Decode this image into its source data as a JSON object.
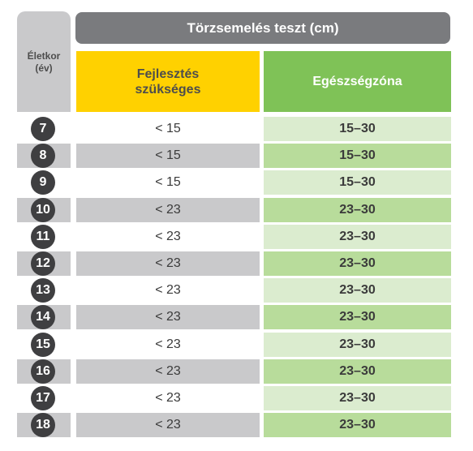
{
  "header": {
    "age_label_line1": "Életkor",
    "age_label_line2": "(év)",
    "title": "Törzsemelés teszt (cm)",
    "dev_label_line1": "Fejlesztés",
    "dev_label_line2": "szükséges",
    "zone_label": "Egészségzóna"
  },
  "rows": [
    {
      "age": "7",
      "dev": "< 15",
      "zone": "15–30"
    },
    {
      "age": "8",
      "dev": "< 15",
      "zone": "15–30"
    },
    {
      "age": "9",
      "dev": "< 15",
      "zone": "15–30"
    },
    {
      "age": "10",
      "dev": "< 23",
      "zone": "23–30"
    },
    {
      "age": "11",
      "dev": "< 23",
      "zone": "23–30"
    },
    {
      "age": "12",
      "dev": "< 23",
      "zone": "23–30"
    },
    {
      "age": "13",
      "dev": "< 23",
      "zone": "23–30"
    },
    {
      "age": "14",
      "dev": "< 23",
      "zone": "23–30"
    },
    {
      "age": "15",
      "dev": "< 23",
      "zone": "23–30"
    },
    {
      "age": "16",
      "dev": "< 23",
      "zone": "23–30"
    },
    {
      "age": "17",
      "dev": "< 23",
      "zone": "23–30"
    },
    {
      "age": "18",
      "dev": "< 23",
      "zone": "23–30"
    }
  ],
  "colors": {
    "title_bar": "#7a7b7e",
    "dev_header": "#ffd100",
    "zone_header": "#7fc257",
    "zone_light": "#dbeccf",
    "zone_dark": "#b8dc9b",
    "gray_band": "#c9c9cb",
    "badge": "#3f3f41"
  }
}
